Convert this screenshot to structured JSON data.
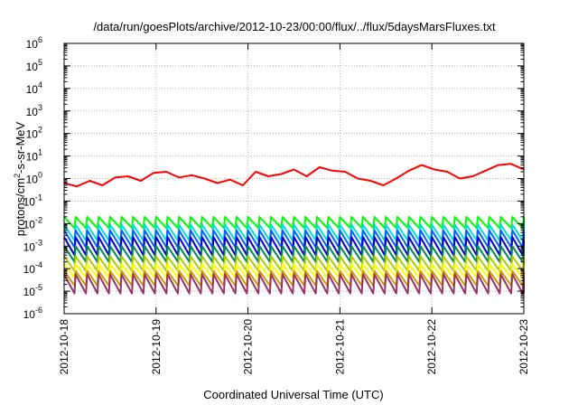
{
  "chart_data": {
    "type": "line",
    "title": "/data/run/goesPlots/archive/2012-10-23/00:00/flux/../flux/5daysMarsFluxes.txt",
    "xlabel": "Coordinated Universal Time (UTC)",
    "ylabel_base": "protons/cm",
    "ylabel_sup": "2",
    "ylabel_rest": "-s-sr-MeV",
    "yscale": "log",
    "ylim_exp": [
      -6,
      6
    ],
    "ytick_exponents": [
      -6,
      -5,
      -4,
      -3,
      -2,
      -1,
      0,
      1,
      2,
      3,
      4,
      5,
      6
    ],
    "ytick_base": "10",
    "xlim_days": [
      0,
      5
    ],
    "xticks": [
      "2012-10-18",
      "2012-10-19",
      "2012-10-20",
      "2012-10-21",
      "2012-10-22",
      "2012-10-23"
    ],
    "grid": true,
    "series": [
      {
        "color": "#ff0000",
        "style": "slow",
        "log10": [
          -0.2,
          -0.35,
          -0.1,
          -0.3,
          0.05,
          0.1,
          -0.1,
          0.25,
          0.3,
          0.05,
          0.15,
          0.0,
          -0.2,
          -0.05,
          -0.3,
          0.3,
          0.1,
          0.2,
          0.4,
          0.1,
          0.5,
          0.35,
          0.3,
          0.0,
          -0.1,
          -0.3,
          0.0,
          0.35,
          0.6,
          0.4,
          0.3,
          0.0,
          0.1,
          0.35,
          0.6,
          0.65,
          0.4
        ]
      },
      {
        "color": "#00ff00",
        "style": "saw",
        "period_hours": 3.0,
        "high": -1.7,
        "low": -2.2
      },
      {
        "color": "#00dddd",
        "style": "saw",
        "period_hours": 3.0,
        "high": -2.05,
        "low": -2.75
      },
      {
        "color": "#0066ff",
        "style": "saw",
        "period_hours": 3.0,
        "high": -2.3,
        "low": -3.05
      },
      {
        "color": "#0000cc",
        "style": "saw",
        "period_hours": 3.0,
        "high": -2.6,
        "low": -3.4
      },
      {
        "color": "#008855",
        "style": "saw",
        "period_hours": 3.0,
        "high": -3.0,
        "low": -3.7
      },
      {
        "color": "#aacc00",
        "style": "saw",
        "period_hours": 3.0,
        "high": -3.45,
        "low": -4.1
      },
      {
        "color": "#ffff00",
        "style": "saw",
        "period_hours": 3.0,
        "high": -3.8,
        "low": -4.4
      },
      {
        "color": "#cc9900",
        "style": "saw",
        "period_hours": 3.0,
        "high": -4.1,
        "low": -4.75
      },
      {
        "color": "#993366",
        "style": "saw",
        "period_hours": 3.0,
        "high": -4.25,
        "low": -5.1
      }
    ]
  }
}
